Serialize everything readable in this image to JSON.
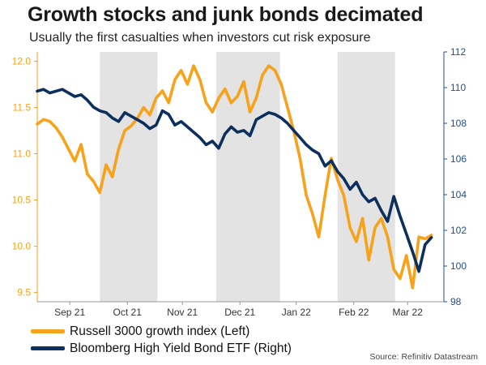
{
  "title": "Growth stocks and junk bonds decimated",
  "subtitle": "Usually the first casualties when investors cut risk exposure",
  "source": "Source: Refinitiv Datastream",
  "colors": {
    "left_series": "#F7A21B",
    "right_series": "#0D2F5E",
    "shade": "#E3E3E3",
    "left_axis": "#F7A21B",
    "right_axis": "#1F4E8C"
  },
  "chart_data": {
    "type": "line",
    "title": "Growth stocks and junk bonds decimated",
    "x_unit": "week index (0 = early Aug 2021 ... 32 = mid Mar 2022)",
    "xlim": [
      0,
      32.5
    ],
    "x_tick_positions": [
      2.6,
      7.2,
      11.6,
      16.2,
      20.7,
      25.3,
      29.6
    ],
    "x_tick_labels": [
      "Sep 21",
      "Oct 21",
      "Nov 21",
      "Dec 21",
      "Jan 22",
      "Feb 22",
      "Mar 22"
    ],
    "shaded_ranges": [
      [
        5.0,
        9.6
      ],
      [
        14.3,
        19.4
      ],
      [
        24.0,
        28.6
      ]
    ],
    "y_left": {
      "label": "Russell 3000 growth index (Left)",
      "ylim": [
        9.4,
        12.1
      ],
      "ticks": [
        9.5,
        10.0,
        10.5,
        11.0,
        11.5,
        12.0
      ],
      "tick_labels": [
        "9.5",
        "10.0",
        "10.5",
        "11.0",
        "11.5",
        "12.0"
      ]
    },
    "y_right": {
      "label": "Bloomberg High Yield Bond ETF (Right)",
      "ylim": [
        98,
        112
      ],
      "ticks": [
        98,
        100,
        102,
        104,
        106,
        108,
        110,
        112
      ],
      "tick_labels": [
        "98",
        "100",
        "102",
        "104",
        "106",
        "108",
        "110",
        "112"
      ]
    },
    "series": [
      {
        "name": "Russell 3000 growth index (Left)",
        "axis": "left",
        "x": [
          0,
          0.5,
          1,
          1.5,
          2,
          2.5,
          3,
          3.5,
          4,
          4.5,
          5,
          5.5,
          6,
          6.5,
          7,
          7.5,
          8,
          8.5,
          9,
          9.5,
          10,
          10.5,
          11,
          11.5,
          12,
          12.5,
          13,
          13.5,
          14,
          14.5,
          15,
          15.5,
          16,
          16.5,
          17,
          17.5,
          18,
          18.5,
          19,
          19.5,
          20,
          20.5,
          21,
          21.5,
          22,
          22.5,
          23,
          23.5,
          24,
          24.5,
          25,
          25.5,
          26,
          26.5,
          27,
          27.5,
          28,
          28.5,
          29,
          29.5,
          30,
          30.5,
          31,
          31.5
        ],
        "y": [
          11.32,
          11.37,
          11.35,
          11.28,
          11.18,
          11.05,
          10.92,
          11.1,
          10.78,
          10.7,
          10.58,
          10.88,
          10.75,
          11.05,
          11.25,
          11.3,
          11.38,
          11.5,
          11.42,
          11.6,
          11.68,
          11.55,
          11.8,
          11.9,
          11.75,
          11.95,
          11.8,
          11.55,
          11.45,
          11.6,
          11.7,
          11.55,
          11.62,
          11.78,
          11.45,
          11.6,
          11.85,
          11.95,
          11.9,
          11.75,
          11.5,
          11.25,
          10.95,
          10.55,
          10.35,
          10.1,
          10.55,
          10.95,
          10.72,
          10.55,
          10.2,
          10.05,
          10.3,
          9.85,
          10.2,
          10.3,
          10.1,
          9.75,
          9.65,
          9.9,
          9.55,
          10.1,
          10.08,
          10.12
        ]
      },
      {
        "name": "Bloomberg High Yield Bond ETF (Right)",
        "axis": "right",
        "x": [
          0,
          0.5,
          1,
          1.5,
          2,
          2.5,
          3,
          3.5,
          4,
          4.5,
          5,
          5.5,
          6,
          6.5,
          7,
          7.5,
          8,
          8.5,
          9,
          9.5,
          10,
          10.5,
          11,
          11.5,
          12,
          12.5,
          13,
          13.5,
          14,
          14.5,
          15,
          15.5,
          16,
          16.5,
          17,
          17.5,
          18,
          18.5,
          19,
          19.5,
          20,
          20.5,
          21,
          21.5,
          22,
          22.5,
          23,
          23.5,
          24,
          24.5,
          25,
          25.5,
          26,
          26.5,
          27,
          27.5,
          28,
          28.5,
          29,
          29.5,
          30,
          30.5,
          31,
          31.5
        ],
        "y": [
          109.8,
          109.9,
          109.7,
          109.8,
          109.9,
          109.7,
          109.5,
          109.6,
          109.3,
          108.9,
          108.7,
          108.6,
          108.3,
          108.1,
          108.6,
          108.4,
          108.2,
          108.0,
          107.7,
          107.9,
          108.7,
          108.5,
          107.9,
          108.1,
          107.8,
          107.5,
          107.2,
          106.8,
          107.0,
          106.6,
          107.4,
          107.8,
          107.5,
          107.6,
          107.3,
          108.2,
          108.4,
          108.6,
          108.5,
          108.3,
          108.0,
          107.6,
          107.2,
          106.8,
          106.5,
          106.3,
          105.6,
          105.9,
          105.3,
          104.9,
          104.3,
          104.7,
          104.0,
          103.6,
          103.8,
          103.1,
          102.5,
          103.9,
          102.8,
          101.8,
          100.8,
          99.7,
          101.2,
          101.6
        ]
      }
    ]
  },
  "legend": {
    "items": [
      {
        "label": "Russell 3000 growth index (Left)"
      },
      {
        "label": "Bloomberg High Yield Bond ETF (Right)"
      }
    ]
  }
}
